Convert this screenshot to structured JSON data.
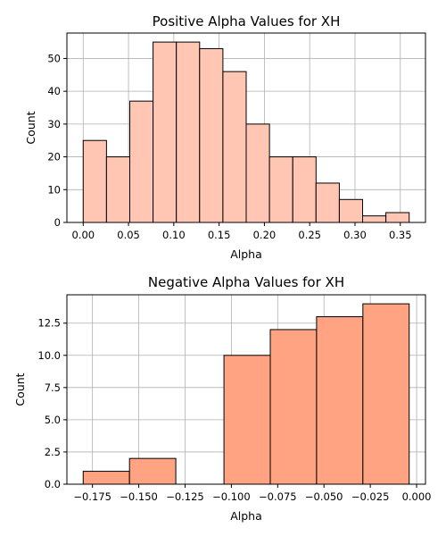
{
  "chart_data": [
    {
      "type": "bar",
      "title": "Positive Alpha Values for XH",
      "xlabel": "Alpha",
      "ylabel": "Count",
      "bin_edges": [
        0.0,
        0.0257,
        0.0514,
        0.0771,
        0.1028,
        0.1285,
        0.1542,
        0.1799,
        0.2056,
        0.2313,
        0.257,
        0.2827,
        0.3084,
        0.3341,
        0.3598
      ],
      "values": [
        25,
        20,
        37,
        55,
        55,
        53,
        46,
        30,
        20,
        20,
        12,
        7,
        2,
        3
      ],
      "xlim": [
        -0.018,
        0.3778
      ],
      "ylim": [
        0,
        57.75
      ],
      "xticks": [
        0.0,
        0.05,
        0.1,
        0.15,
        0.2,
        0.25,
        0.3,
        0.35
      ],
      "xtick_labels": [
        "0.00",
        "0.05",
        "0.10",
        "0.15",
        "0.20",
        "0.25",
        "0.30",
        "0.35"
      ],
      "yticks": [
        0,
        10,
        20,
        30,
        40,
        50
      ],
      "ytick_labels": [
        "0",
        "10",
        "20",
        "30",
        "40",
        "50"
      ],
      "grid": true,
      "color": "#ffc6b3"
    },
    {
      "type": "bar",
      "title": "Negative Alpha Values for XH",
      "xlabel": "Alpha",
      "ylabel": "Count",
      "bin_edges": [
        -0.18,
        -0.155,
        -0.13,
        -0.104,
        -0.079,
        -0.054,
        -0.029,
        -0.004
      ],
      "values": [
        1,
        2,
        0,
        10,
        12,
        13,
        14
      ],
      "xlim": [
        -0.1888,
        0.0048
      ],
      "ylim": [
        0,
        14.7
      ],
      "xticks": [
        -0.175,
        -0.15,
        -0.125,
        -0.1,
        -0.075,
        -0.05,
        -0.025,
        0.0
      ],
      "xtick_labels": [
        "−0.175",
        "−0.150",
        "−0.125",
        "−0.100",
        "−0.075",
        "−0.050",
        "−0.025",
        "0.000"
      ],
      "yticks": [
        0.0,
        2.5,
        5.0,
        7.5,
        10.0,
        12.5
      ],
      "ytick_labels": [
        "0.0",
        "2.5",
        "5.0",
        "7.5",
        "10.0",
        "12.5"
      ],
      "grid": true,
      "color": "#ffa382"
    }
  ]
}
